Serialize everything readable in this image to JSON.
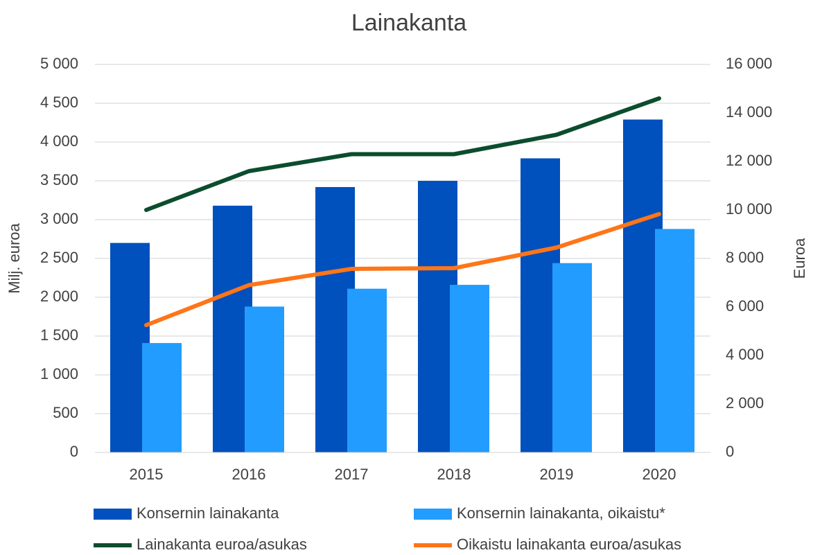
{
  "chart_data": {
    "type": "bar-line",
    "title": "Lainakanta",
    "y_label": "Milj. euroa",
    "y2_label": "Euroa",
    "categories": [
      "2015",
      "2016",
      "2017",
      "2018",
      "2019",
      "2020"
    ],
    "series": [
      {
        "name": "Konsernin lainakanta",
        "type": "bar",
        "color": "#0050be",
        "values": [
          2700,
          3180,
          3420,
          3500,
          3790,
          4290
        ]
      },
      {
        "name": "Konsernin lainakanta, oikaistu*",
        "type": "bar",
        "color": "#229cff",
        "values": [
          1410,
          1880,
          2110,
          2160,
          2440,
          2880
        ]
      },
      {
        "name": "Lainakanta euroa/asukas",
        "type": "line",
        "axis": "y2",
        "color": "#0b4d2e",
        "values": [
          10000,
          11600,
          12300,
          12300,
          13100,
          14600
        ]
      },
      {
        "name": "Oikaistu lainakanta euroa/asukas",
        "type": "line",
        "axis": "y2",
        "color": "#ff7518",
        "values": [
          5250,
          6900,
          7570,
          7600,
          8450,
          9830
        ]
      }
    ],
    "ylim": [
      0,
      5000
    ],
    "yticks": [
      0,
      500,
      {
        "value": 1000,
        "label": "1 000"
      },
      {
        "value": 1500,
        "label": "1 500"
      },
      {
        "value": 2000,
        "label": "2 000"
      },
      {
        "value": 2500,
        "label": "2 500"
      },
      {
        "value": 3000,
        "label": "3 000"
      },
      {
        "value": 3500,
        "label": "3 500"
      },
      {
        "value": 4000,
        "label": "4 000"
      },
      {
        "value": 4500,
        "label": "4 500"
      },
      {
        "value": 5000,
        "label": "5 000"
      }
    ],
    "y2lim": [
      0,
      16000
    ],
    "y2ticks": [
      0,
      {
        "value": 2000,
        "label": "2 000"
      },
      {
        "value": 4000,
        "label": "4 000"
      },
      {
        "value": 6000,
        "label": "6 000"
      },
      {
        "value": 8000,
        "label": "8 000"
      },
      {
        "value": 10000,
        "label": "10 000"
      },
      {
        "value": 12000,
        "label": "12 000"
      },
      {
        "value": 14000,
        "label": "14 000"
      },
      {
        "value": 16000,
        "label": "16 000"
      }
    ],
    "grid": true
  }
}
